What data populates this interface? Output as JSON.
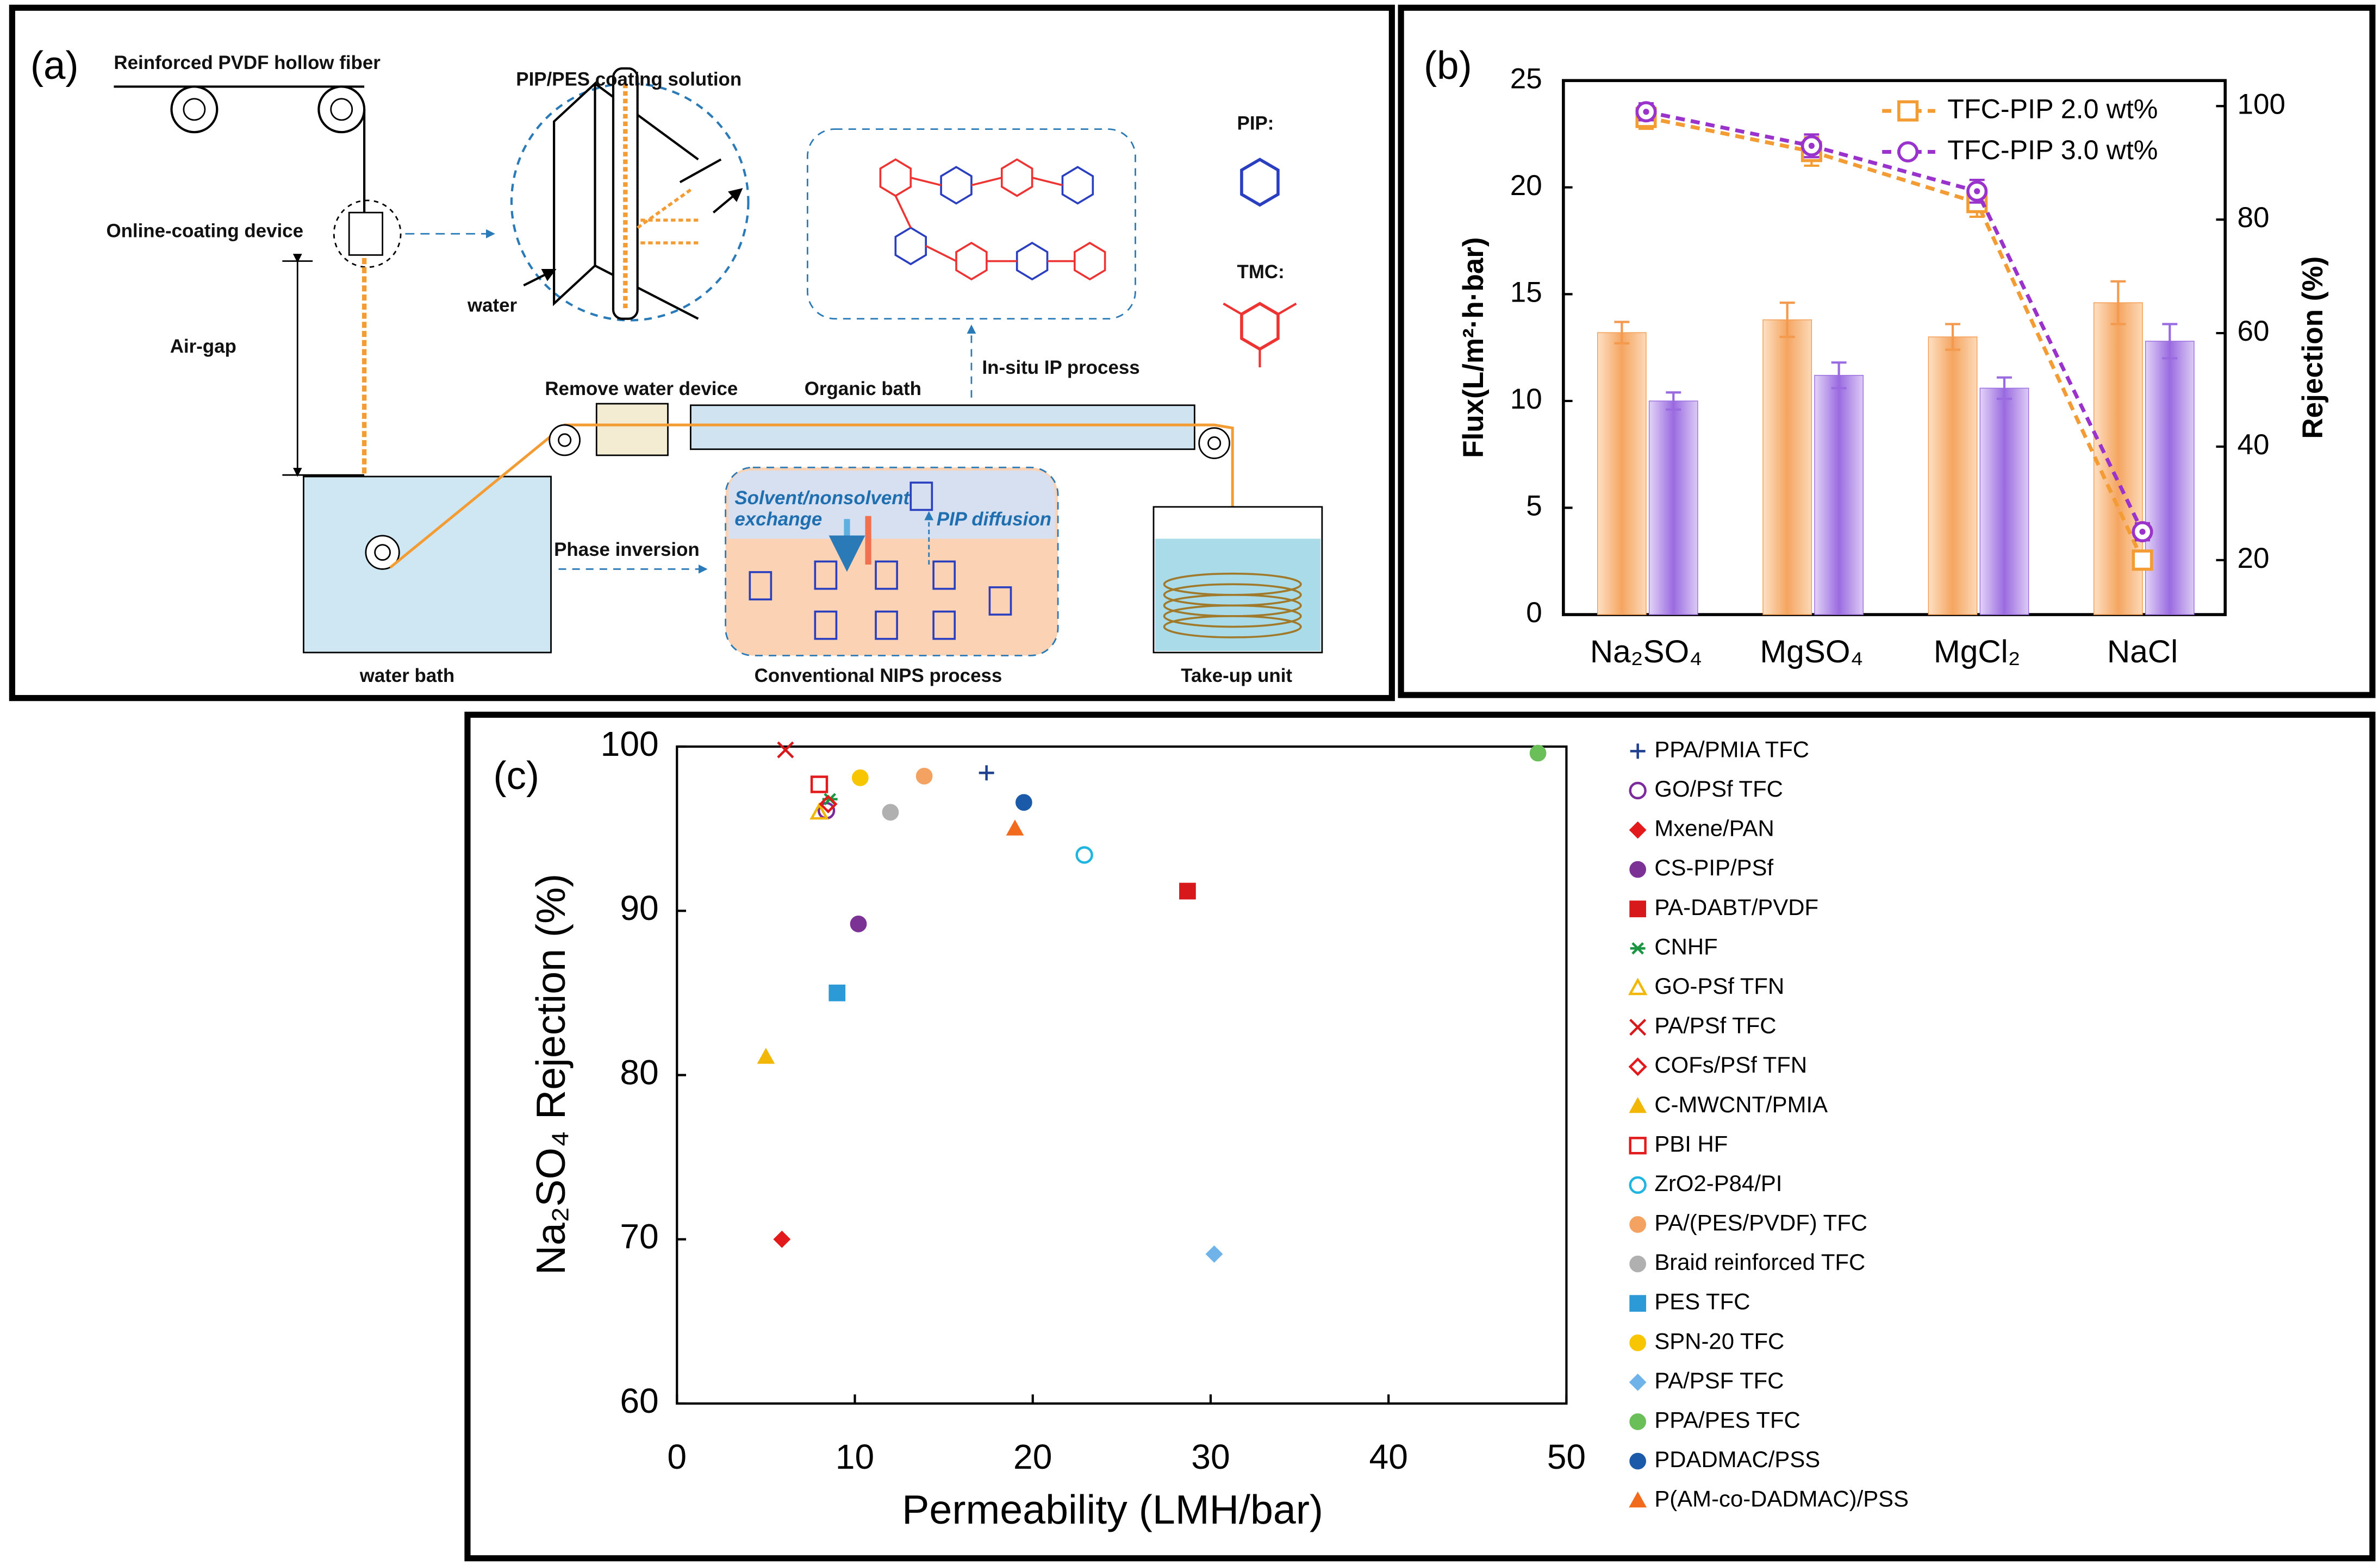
{
  "diagram": {
    "panel_label": "(a)",
    "labels": {
      "fiber": "Reinforced PVDF hollow fiber",
      "coating_solution": "PIP/PES coating solution",
      "coating_device": "Online-coating device",
      "air_gap": "Air-gap",
      "water": "water",
      "pip": "PIP:",
      "tmc": "TMC:",
      "ip_process": "In-situ IP process",
      "remove_water": "Remove water device",
      "organic_bath": "Organic bath",
      "exchange_1": "Solvent/nonsolvent",
      "exchange_2": "exchange",
      "pip_diffusion": "PIP  diffusion",
      "phase_inversion": "Phase inversion",
      "water_bath": "water bath",
      "nips": "Conventional NIPS process",
      "take_up": "Take-up unit"
    }
  },
  "chart_data": [
    {
      "type": "bar",
      "panel_label": "(b)",
      "ylabel": "Flux(L/m²·h·bar)",
      "y2label": "Rejection (%)",
      "categories": [
        "Na₂SO₄",
        "MgSO₄",
        "MgCl₂",
        "NaCl"
      ],
      "bar_series": [
        {
          "color": "#f39a4e",
          "values": [
            13.2,
            13.8,
            13.0,
            14.6
          ],
          "errors": [
            0.5,
            0.8,
            0.6,
            1.0
          ]
        },
        {
          "color": "#9a6be0",
          "values": [
            10.0,
            11.2,
            10.6,
            12.8
          ],
          "errors": [
            0.4,
            0.6,
            0.5,
            0.8
          ]
        }
      ],
      "series": [
        {
          "name": "TFC-PIP 2.0 wt%",
          "color": "#f39c34",
          "marker": "open-square",
          "axis": "y2",
          "values": [
            98,
            92,
            83,
            20
          ],
          "errors": [
            2,
            2.5,
            2.5,
            1.5
          ]
        },
        {
          "name": "TFC-PIP 3.0 wt%",
          "color": "#9933cc",
          "marker": "open-circle",
          "axis": "y2",
          "values": [
            99,
            93,
            85,
            25
          ],
          "errors": [
            1.5,
            2,
            2,
            1.5
          ]
        }
      ],
      "ylim": [
        0,
        25
      ],
      "yticks": [
        0,
        5,
        10,
        15,
        20,
        25
      ],
      "y2lim": [
        10.4,
        104.5
      ],
      "y2ticks": [
        20,
        40,
        60,
        80,
        100
      ],
      "legend": "upper right"
    },
    {
      "type": "scatter",
      "panel_label": "(c)",
      "xlabel": "Permeability (LMH/bar)",
      "ylabel": "Na₂SO₄ Rejection (%)",
      "xlim": [
        0,
        50
      ],
      "ylim": [
        60,
        100
      ],
      "xticks": [
        0,
        10,
        20,
        30,
        40,
        50
      ],
      "yticks": [
        60,
        70,
        80,
        90,
        100
      ],
      "legend": "right",
      "series": [
        {
          "name": "PPA/PMIA TFC",
          "color": "#1f3f8f",
          "marker": "plus",
          "x": [
            17.4
          ],
          "values": [
            98.4
          ]
        },
        {
          "name": "GO/PSf TFC",
          "color": "#7a2a9a",
          "marker": "open-circle",
          "x": [
            8.4
          ],
          "values": [
            96.1
          ]
        },
        {
          "name": "Mxene/PAN",
          "color": "#e31a1c",
          "marker": "diamond",
          "x": [
            5.9
          ],
          "values": [
            70
          ]
        },
        {
          "name": "CS-PIP/PSf",
          "color": "#7b3294",
          "marker": "circle",
          "x": [
            10.2
          ],
          "values": [
            89.2
          ]
        },
        {
          "name": "PA-DABT/PVDF",
          "color": "#d7191c",
          "marker": "square",
          "x": [
            28.7
          ],
          "values": [
            91.2
          ]
        },
        {
          "name": "CNHF",
          "color": "#1a9641",
          "marker": "asterisk",
          "x": [
            8.6
          ],
          "values": [
            96.8
          ]
        },
        {
          "name": "GO-PSf TFN",
          "color": "#f2b705",
          "marker": "open-triangle",
          "x": [
            8.0
          ],
          "values": [
            96.0
          ]
        },
        {
          "name": "PA/PSf TFC",
          "color": "#d7191c",
          "marker": "x",
          "x": [
            6.1
          ],
          "values": [
            99.8
          ]
        },
        {
          "name": "COFs/PSf TFN",
          "color": "#e31a1c",
          "marker": "open-diamond",
          "x": [
            8.5
          ],
          "values": [
            96.5
          ]
        },
        {
          "name": "C-MWCNT/PMIA",
          "color": "#f2b705",
          "marker": "triangle",
          "x": [
            5.0
          ],
          "values": [
            81.1
          ]
        },
        {
          "name": "PBI HF",
          "color": "#e31a1c",
          "marker": "open-square",
          "x": [
            8.0
          ],
          "values": [
            97.7
          ]
        },
        {
          "name": "ZrO2-P84/PI",
          "color": "#1fb5e0",
          "marker": "open-circle",
          "x": [
            22.9
          ],
          "values": [
            93.4
          ]
        },
        {
          "name": "PA/(PES/PVDF) TFC",
          "color": "#f4a261",
          "marker": "circle",
          "x": [
            13.9
          ],
          "values": [
            98.2
          ]
        },
        {
          "name": "Braid reinforced TFC",
          "color": "#b0b0b0",
          "marker": "circle",
          "x": [
            12.0
          ],
          "values": [
            96.0
          ]
        },
        {
          "name": "PES TFC",
          "color": "#2c9ad6",
          "marker": "square",
          "x": [
            9.0
          ],
          "values": [
            85.0
          ]
        },
        {
          "name": "SPN-20 TFC",
          "color": "#f7c600",
          "marker": "circle",
          "x": [
            10.3
          ],
          "values": [
            98.1
          ]
        },
        {
          "name": "PA/PSF TFC",
          "color": "#6fb3e8",
          "marker": "diamond",
          "x": [
            30.2
          ],
          "values": [
            69.1
          ]
        },
        {
          "name": "PPA/PES TFC",
          "color": "#6abf59",
          "marker": "circle",
          "x": [
            48.4
          ],
          "values": [
            99.6
          ]
        },
        {
          "name": "PDADMAC/PSS",
          "color": "#1a5aa8",
          "marker": "circle",
          "x": [
            19.5
          ],
          "values": [
            96.6
          ]
        },
        {
          "name": "P(AM-co-DADMAC)/PSS",
          "color": "#f26b1d",
          "marker": "triangle",
          "x": [
            19.0
          ],
          "values": [
            95.0
          ]
        }
      ]
    }
  ]
}
